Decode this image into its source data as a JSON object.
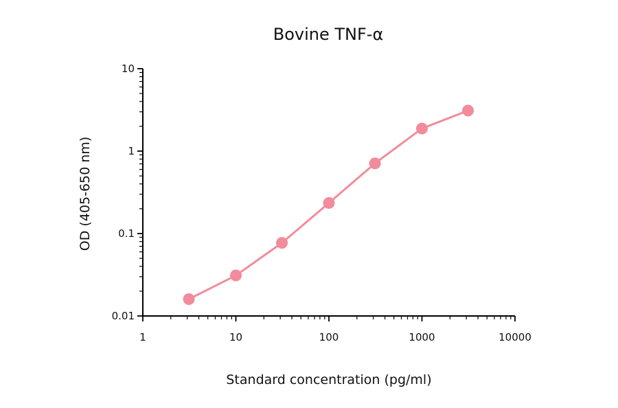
{
  "chart_data": {
    "type": "line",
    "title": "Bovine TNF-α",
    "xlabel": "Standard concentration (pg/ml)",
    "ylabel": "OD (405-650 nm)",
    "x_scale": "log",
    "y_scale": "log",
    "xlim": [
      1,
      10000
    ],
    "ylim": [
      0.01,
      10
    ],
    "x_ticks": [
      "1",
      "10",
      "100",
      "1000",
      "10000"
    ],
    "y_ticks": [
      "0.01",
      "0.1",
      "1",
      "10"
    ],
    "grid": false,
    "legend": "none",
    "series": [
      {
        "color": "#f28b9b",
        "marker": "circle",
        "points": [
          {
            "x": 3.125,
            "y": 0.016
          },
          {
            "x": 10,
            "y": 0.031
          },
          {
            "x": 31.25,
            "y": 0.077
          },
          {
            "x": 100,
            "y": 0.235
          },
          {
            "x": 312.5,
            "y": 0.71
          },
          {
            "x": 1000,
            "y": 1.88
          },
          {
            "x": 3125,
            "y": 3.1
          }
        ]
      }
    ]
  }
}
